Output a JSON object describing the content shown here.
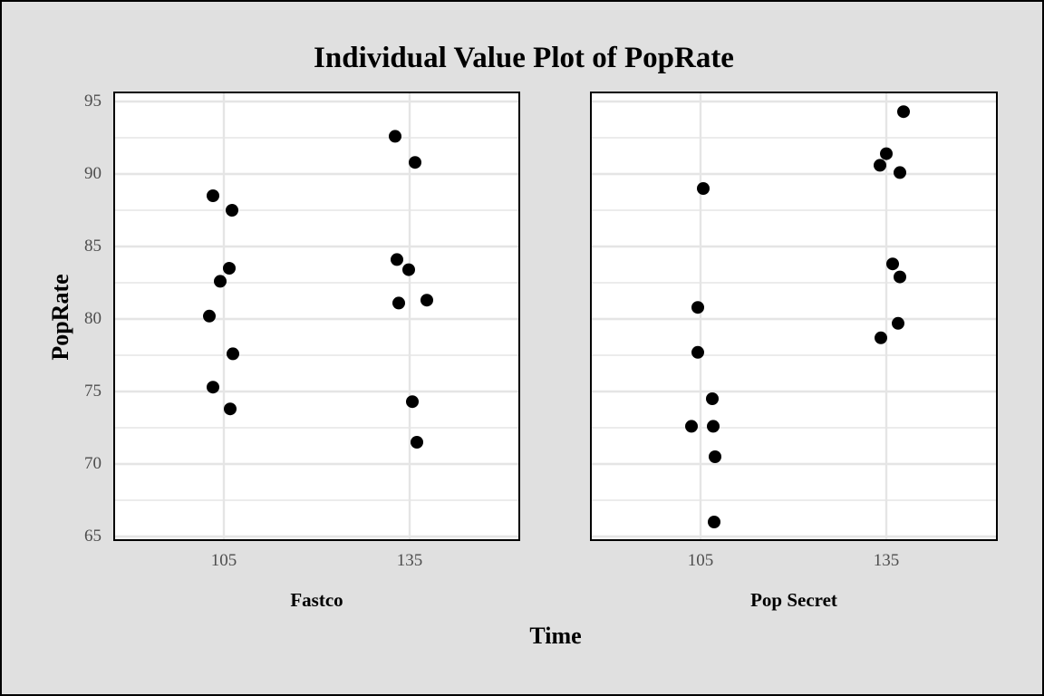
{
  "chart_data": {
    "type": "scatter",
    "title": "Individual Value Plot of PopRate",
    "xlabel": "Time",
    "ylabel": "PopRate",
    "ylim": [
      65,
      95
    ],
    "yticks": [
      65,
      70,
      75,
      80,
      85,
      90,
      95
    ],
    "xticks": [
      105,
      135
    ],
    "grid": true,
    "colors": {
      "point": "#000000",
      "grid": "#e5e5e5",
      "panel_bg": "#ffffff",
      "page_bg": "#e0e0e0"
    },
    "panels": [
      {
        "name": "Fastco",
        "points": [
          {
            "x": 105,
            "y": 88.5
          },
          {
            "x": 105,
            "y": 87.5
          },
          {
            "x": 105,
            "y": 83.5
          },
          {
            "x": 105,
            "y": 82.6
          },
          {
            "x": 105,
            "y": 80.2
          },
          {
            "x": 105,
            "y": 77.6
          },
          {
            "x": 105,
            "y": 75.3
          },
          {
            "x": 105,
            "y": 73.8
          },
          {
            "x": 135,
            "y": 92.6
          },
          {
            "x": 135,
            "y": 90.8
          },
          {
            "x": 135,
            "y": 84.1
          },
          {
            "x": 135,
            "y": 83.4
          },
          {
            "x": 135,
            "y": 81.3
          },
          {
            "x": 135,
            "y": 81.1
          },
          {
            "x": 135,
            "y": 74.3
          },
          {
            "x": 135,
            "y": 71.5
          }
        ]
      },
      {
        "name": "Pop Secret",
        "points": [
          {
            "x": 105,
            "y": 89.0
          },
          {
            "x": 105,
            "y": 80.8
          },
          {
            "x": 105,
            "y": 77.7
          },
          {
            "x": 105,
            "y": 74.5
          },
          {
            "x": 105,
            "y": 72.6
          },
          {
            "x": 105,
            "y": 72.6
          },
          {
            "x": 105,
            "y": 70.5
          },
          {
            "x": 105,
            "y": 66.0
          },
          {
            "x": 135,
            "y": 94.3
          },
          {
            "x": 135,
            "y": 91.4
          },
          {
            "x": 135,
            "y": 90.6
          },
          {
            "x": 135,
            "y": 90.1
          },
          {
            "x": 135,
            "y": 83.8
          },
          {
            "x": 135,
            "y": 82.9
          },
          {
            "x": 135,
            "y": 79.7
          },
          {
            "x": 135,
            "y": 78.7
          }
        ]
      }
    ]
  }
}
